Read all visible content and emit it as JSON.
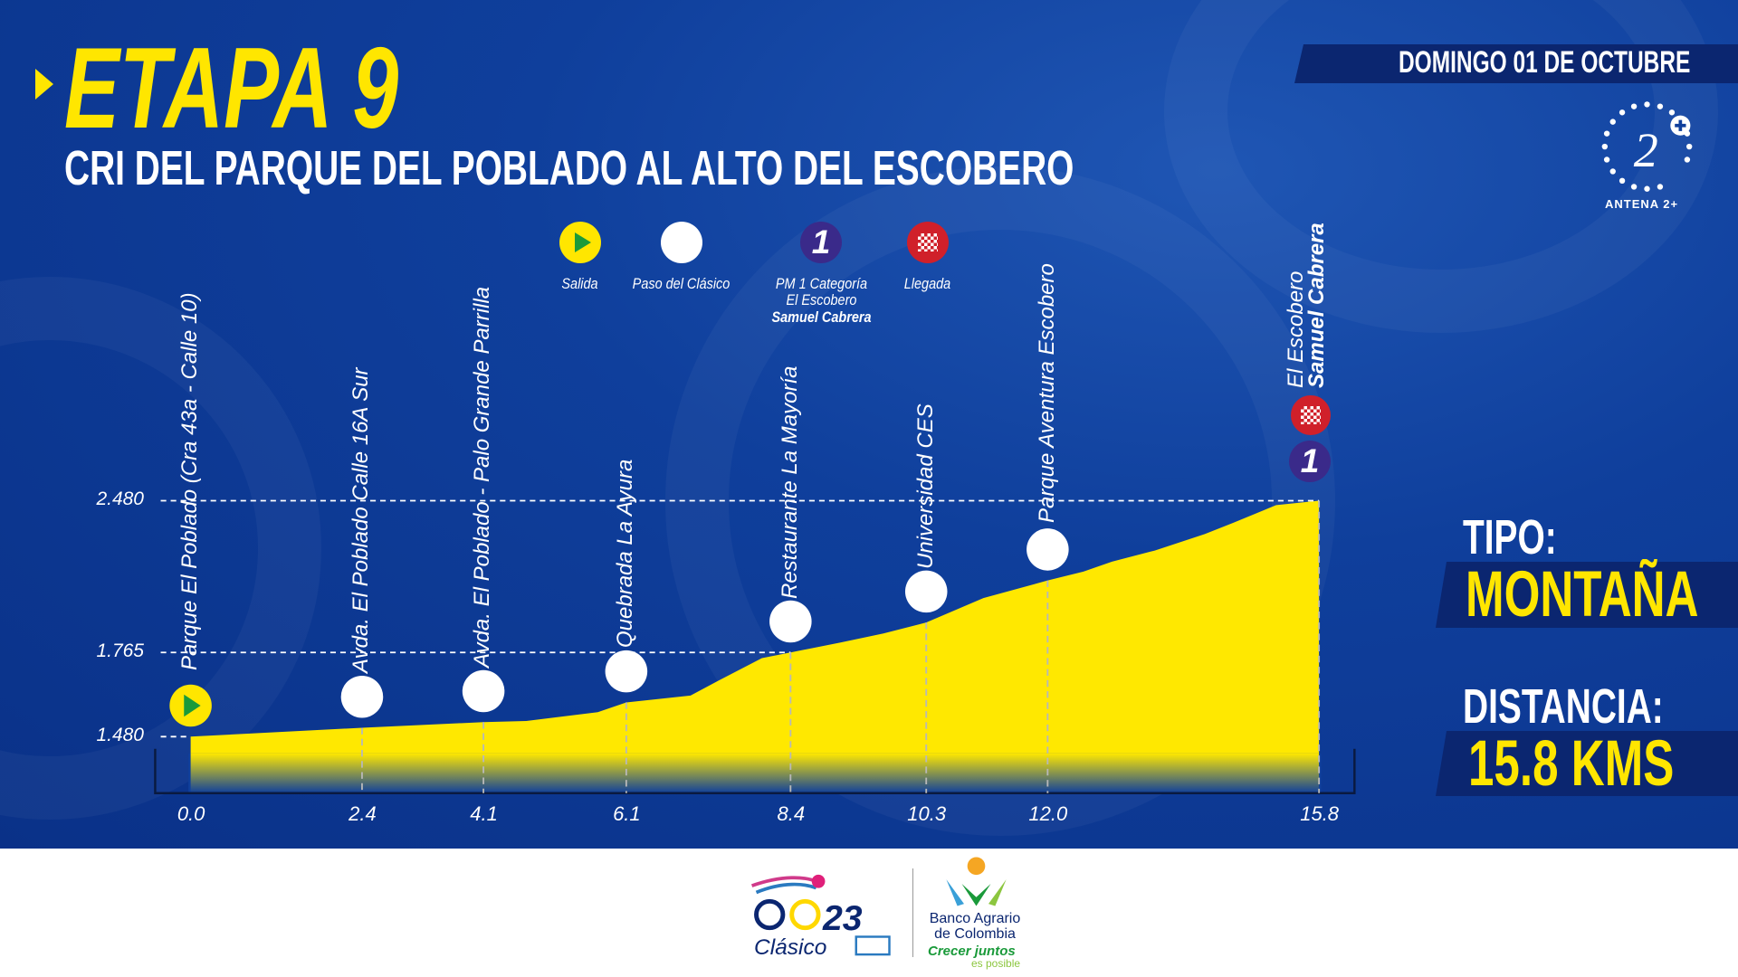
{
  "header": {
    "stage_title": "ETAPA 9",
    "subtitle": "CRI DEL PARQUE DEL POBLADO AL ALTO DEL ESCOBERO",
    "date": "DOMINGO 01 DE OCTUBRE",
    "broadcaster_logo": "ANTENA 2+"
  },
  "legend": [
    {
      "icon": "start-icon",
      "label": "Salida"
    },
    {
      "icon": "white-dot-icon",
      "label": "Paso del Clásico"
    },
    {
      "icon": "mountain-pass-1-icon",
      "label": "PM 1 Categoría",
      "sub": "El Escobero",
      "name": "Samuel Cabrera"
    },
    {
      "icon": "finish-flag-icon",
      "label": "Llegada"
    }
  ],
  "info": {
    "tipo_label": "TIPO:",
    "tipo_value": "MONTAÑA",
    "distancia_label": "DISTANCIA:",
    "distancia_value": "15.8 KMS"
  },
  "colors": {
    "background": "#0f3f9c",
    "accent": "#ffe600",
    "band": "#0b2670",
    "start": "#1a9a3a",
    "finish": "#d0202a",
    "pm": "#3a2a8a"
  },
  "chart_data": {
    "type": "area",
    "title": "",
    "xlabel": "",
    "ylabel": "",
    "x_ticks": [
      "0.0",
      "2.4",
      "4.1",
      "6.1",
      "8.4",
      "10.3",
      "12.0",
      "15.8"
    ],
    "y_ticks": [
      "1.480",
      "1.765",
      "2.480"
    ],
    "y_tick_values": [
      1480,
      1765,
      2480
    ],
    "xlim": [
      0,
      15.8
    ],
    "ylim": [
      1480,
      2480
    ],
    "profile": {
      "x": [
        0.0,
        2.4,
        4.1,
        4.7,
        5.7,
        6.1,
        7.0,
        7.4,
        8.0,
        8.4,
        9.1,
        9.7,
        10.3,
        11.1,
        12.0,
        12.5,
        12.9,
        13.5,
        14.2,
        14.6,
        15.2,
        15.8
      ],
      "y": [
        1480,
        1510,
        1529,
        1533,
        1563,
        1596,
        1619,
        1671,
        1746,
        1765,
        1812,
        1854,
        1906,
        2021,
        2104,
        2146,
        2193,
        2245,
        2323,
        2376,
        2459,
        2480
      ]
    },
    "waypoints": [
      {
        "km": 0.0,
        "type": "start",
        "label": "Parque El Poblado (Cra 43a - Calle 10)"
      },
      {
        "km": 2.4,
        "type": "pass",
        "label": "Avda. El Poblado Calle 16A Sur"
      },
      {
        "km": 4.1,
        "type": "pass",
        "label": "Avda. El Poblado - Palo Grande Parrilla"
      },
      {
        "km": 6.1,
        "type": "pass",
        "label": "Quebrada La Ayura"
      },
      {
        "km": 8.4,
        "type": "pass",
        "label": "Restaurante La Mayoría"
      },
      {
        "km": 10.3,
        "type": "pass",
        "label": "Universidad CES"
      },
      {
        "km": 12.0,
        "type": "pass",
        "label": "Parque Aventura Escobero"
      },
      {
        "km": 15.8,
        "type": "finish",
        "label": "El Escobero",
        "sub": "Samuel Cabrera"
      }
    ],
    "grid": "dashed reference lines at y ticks"
  },
  "footer": {
    "event_logo": "Clásico 23",
    "sponsor_line1": "Banco Agrario",
    "sponsor_line2": "de Colombia",
    "sponsor_slogan1": "Crecer juntos",
    "sponsor_slogan2": "es posible"
  }
}
